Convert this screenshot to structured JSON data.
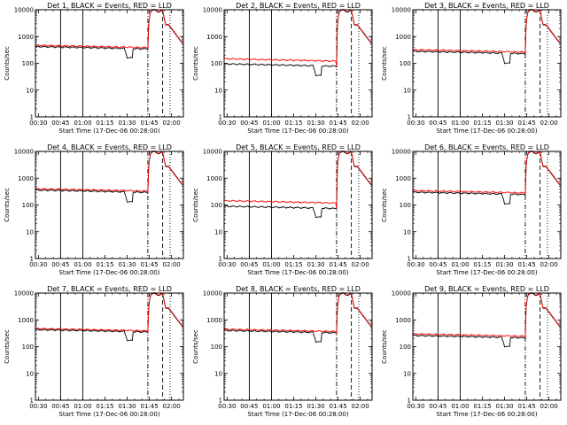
{
  "layout": {
    "columns": 3,
    "x_tick_labels": [
      "00:30",
      "00:45",
      "01:00",
      "01:15",
      "01:30",
      "01:45",
      "02:00"
    ],
    "y_tick_labels": [
      "1",
      "10",
      "100",
      "1000",
      "10000"
    ]
  },
  "chart_data": [
    {
      "type": "line",
      "title": "Det 1, BLACK = Events, RED = LLD",
      "xlabel": "Start Time (17-Dec-06 00:28:00)",
      "ylabel": "Counts/sec",
      "yscale": "log",
      "ylim": [
        1,
        10000
      ],
      "x_unit": "minutes after 00:28:00",
      "xlim": [
        0,
        100
      ],
      "events_level": 420,
      "lld_ratio": 1.12,
      "dip_level": 160,
      "x_ticks": [
        2,
        17,
        32,
        47,
        62,
        77,
        92
      ],
      "vertical_lines": [
        {
          "x": 17,
          "style": "solid"
        },
        {
          "x": 32,
          "style": "solid"
        },
        {
          "x": 76,
          "style": "dash-dot"
        },
        {
          "x": 86,
          "style": "dashed"
        },
        {
          "x": 91,
          "style": "dotted"
        }
      ],
      "series": [
        {
          "name": "Events",
          "color": "#000000"
        },
        {
          "name": "LLD",
          "color": "#ff0000"
        }
      ]
    },
    {
      "type": "line",
      "title": "Det 2, BLACK = Events, RED = LLD",
      "xlabel": "Start Time (17-Dec-06 00:28:00)",
      "ylabel": "Counts/sec",
      "yscale": "log",
      "ylim": [
        1,
        10000
      ],
      "x_unit": "minutes after 00:28:00",
      "xlim": [
        0,
        100
      ],
      "events_level": 95,
      "lld_ratio": 1.55,
      "dip_level": 35,
      "x_ticks": [
        2,
        17,
        32,
        47,
        62,
        77,
        92
      ],
      "vertical_lines": [
        {
          "x": 17,
          "style": "solid"
        },
        {
          "x": 32,
          "style": "solid"
        },
        {
          "x": 76,
          "style": "dash-dot"
        },
        {
          "x": 86,
          "style": "dashed"
        },
        {
          "x": 91,
          "style": "dotted"
        }
      ],
      "series": [
        {
          "name": "Events",
          "color": "#000000"
        },
        {
          "name": "LLD",
          "color": "#ff0000"
        }
      ]
    },
    {
      "type": "line",
      "title": "Det 3, BLACK = Events, RED = LLD",
      "xlabel": "Start Time (17-Dec-06 00:28:00)",
      "ylabel": "Counts/sec",
      "yscale": "log",
      "ylim": [
        1,
        10000
      ],
      "x_unit": "minutes after 00:28:00",
      "xlim": [
        0,
        100
      ],
      "events_level": 280,
      "lld_ratio": 1.15,
      "dip_level": 100,
      "x_ticks": [
        2,
        17,
        32,
        47,
        62,
        77,
        92
      ],
      "vertical_lines": [
        {
          "x": 17,
          "style": "solid"
        },
        {
          "x": 32,
          "style": "solid"
        },
        {
          "x": 76,
          "style": "dash-dot"
        },
        {
          "x": 86,
          "style": "dashed"
        },
        {
          "x": 91,
          "style": "dotted"
        }
      ],
      "series": [
        {
          "name": "Events",
          "color": "#000000"
        },
        {
          "name": "LLD",
          "color": "#ff0000"
        }
      ]
    },
    {
      "type": "line",
      "title": "Det 4, BLACK = Events, RED = LLD",
      "xlabel": "Start Time (17-Dec-06 00:28:00)",
      "ylabel": "Counts/sec",
      "yscale": "log",
      "ylim": [
        1,
        10000
      ],
      "x_unit": "minutes after 00:28:00",
      "xlim": [
        0,
        100
      ],
      "events_level": 360,
      "lld_ratio": 1.12,
      "dip_level": 130,
      "x_ticks": [
        2,
        17,
        32,
        47,
        62,
        77,
        92
      ],
      "vertical_lines": [
        {
          "x": 17,
          "style": "solid"
        },
        {
          "x": 32,
          "style": "solid"
        },
        {
          "x": 76,
          "style": "dash-dot"
        },
        {
          "x": 86,
          "style": "dashed"
        },
        {
          "x": 91,
          "style": "dotted"
        }
      ],
      "series": [
        {
          "name": "Events",
          "color": "#000000"
        },
        {
          "name": "LLD",
          "color": "#ff0000"
        }
      ]
    },
    {
      "type": "line",
      "title": "Det 5, BLACK = Events, RED = LLD",
      "xlabel": "Start Time (17-Dec-06 00:28:00)",
      "ylabel": "Counts/sec",
      "yscale": "log",
      "ylim": [
        1,
        10000
      ],
      "x_unit": "minutes after 00:28:00",
      "xlim": [
        0,
        100
      ],
      "events_level": 90,
      "lld_ratio": 1.6,
      "dip_level": 35,
      "x_ticks": [
        2,
        17,
        32,
        47,
        62,
        77,
        92
      ],
      "vertical_lines": [
        {
          "x": 17,
          "style": "solid"
        },
        {
          "x": 32,
          "style": "solid"
        },
        {
          "x": 76,
          "style": "dash-dot"
        },
        {
          "x": 86,
          "style": "dashed"
        },
        {
          "x": 91,
          "style": "dotted"
        }
      ],
      "series": [
        {
          "name": "Events",
          "color": "#000000"
        },
        {
          "name": "LLD",
          "color": "#ff0000"
        }
      ]
    },
    {
      "type": "line",
      "title": "Det 6, BLACK = Events, RED = LLD",
      "xlabel": "Start Time (17-Dec-06 00:28:00)",
      "ylabel": "Counts/sec",
      "yscale": "log",
      "ylim": [
        1,
        10000
      ],
      "x_unit": "minutes after 00:28:00",
      "xlim": [
        0,
        100
      ],
      "events_level": 300,
      "lld_ratio": 1.15,
      "dip_level": 110,
      "x_ticks": [
        2,
        17,
        32,
        47,
        62,
        77,
        92
      ],
      "vertical_lines": [
        {
          "x": 17,
          "style": "solid"
        },
        {
          "x": 32,
          "style": "solid"
        },
        {
          "x": 76,
          "style": "dash-dot"
        },
        {
          "x": 86,
          "style": "dashed"
        },
        {
          "x": 91,
          "style": "dotted"
        }
      ],
      "series": [
        {
          "name": "Events",
          "color": "#000000"
        },
        {
          "name": "LLD",
          "color": "#ff0000"
        }
      ]
    },
    {
      "type": "line",
      "title": "Det 7, BLACK = Events, RED = LLD",
      "xlabel": "Start Time (17-Dec-06 00:28:00)",
      "ylabel": "Counts/sec",
      "yscale": "log",
      "ylim": [
        1,
        10000
      ],
      "x_unit": "minutes after 00:28:00",
      "xlim": [
        0,
        100
      ],
      "events_level": 430,
      "lld_ratio": 1.1,
      "dip_level": 170,
      "x_ticks": [
        2,
        17,
        32,
        47,
        62,
        77,
        92
      ],
      "vertical_lines": [
        {
          "x": 17,
          "style": "solid"
        },
        {
          "x": 32,
          "style": "solid"
        },
        {
          "x": 76,
          "style": "dash-dot"
        },
        {
          "x": 86,
          "style": "dashed"
        },
        {
          "x": 91,
          "style": "dotted"
        }
      ],
      "series": [
        {
          "name": "Events",
          "color": "#000000"
        },
        {
          "name": "LLD",
          "color": "#ff0000"
        }
      ]
    },
    {
      "type": "line",
      "title": "Det 8, BLACK = Events, RED = LLD",
      "xlabel": "Start Time (17-Dec-06 00:28:00)",
      "ylabel": "Counts/sec",
      "yscale": "log",
      "ylim": [
        1,
        10000
      ],
      "x_unit": "minutes after 00:28:00",
      "xlim": [
        0,
        100
      ],
      "events_level": 400,
      "lld_ratio": 1.12,
      "dip_level": 150,
      "x_ticks": [
        2,
        17,
        32,
        47,
        62,
        77,
        92
      ],
      "vertical_lines": [
        {
          "x": 17,
          "style": "solid"
        },
        {
          "x": 32,
          "style": "solid"
        },
        {
          "x": 76,
          "style": "dash-dot"
        },
        {
          "x": 86,
          "style": "dashed"
        },
        {
          "x": 91,
          "style": "dotted"
        }
      ],
      "series": [
        {
          "name": "Events",
          "color": "#000000"
        },
        {
          "name": "LLD",
          "color": "#ff0000"
        }
      ]
    },
    {
      "type": "line",
      "title": "Det 9, BLACK = Events, RED = LLD",
      "xlabel": "Start Time (17-Dec-06 00:28:00)",
      "ylabel": "Counts/sec",
      "yscale": "log",
      "ylim": [
        1,
        10000
      ],
      "x_unit": "minutes after 00:28:00",
      "xlim": [
        0,
        100
      ],
      "events_level": 260,
      "lld_ratio": 1.15,
      "dip_level": 100,
      "x_ticks": [
        2,
        17,
        32,
        47,
        62,
        77,
        92
      ],
      "vertical_lines": [
        {
          "x": 17,
          "style": "solid"
        },
        {
          "x": 32,
          "style": "solid"
        },
        {
          "x": 76,
          "style": "dash-dot"
        },
        {
          "x": 86,
          "style": "dashed"
        },
        {
          "x": 91,
          "style": "dotted"
        }
      ],
      "series": [
        {
          "name": "Events",
          "color": "#000000"
        },
        {
          "name": "LLD",
          "color": "#ff0000"
        }
      ]
    }
  ]
}
